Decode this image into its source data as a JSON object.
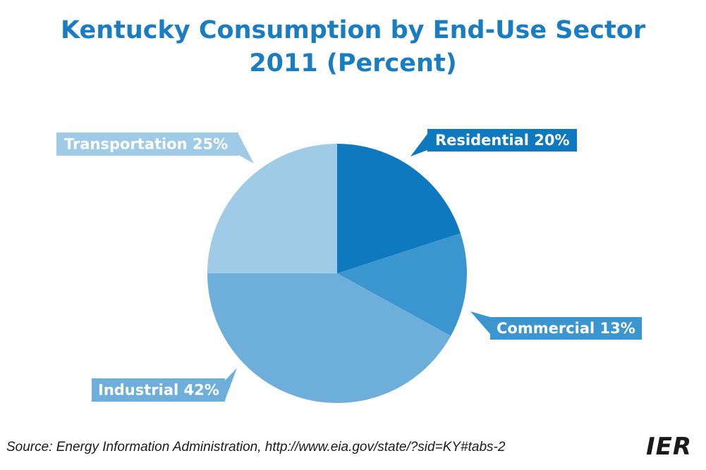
{
  "chart_data": {
    "type": "pie",
    "title": "Kentucky Consumption by End-Use Sector",
    "subtitle": "2011 (Percent)",
    "slices": [
      {
        "name": "Residential",
        "value": 20,
        "label": "Residential 20%",
        "color": "#0f79c0"
      },
      {
        "name": "Commercial",
        "value": 13,
        "label": "Commercial 13%",
        "color": "#3b96d0"
      },
      {
        "name": "Industrial",
        "value": 42,
        "label": "Industrial 42%",
        "color": "#6eaedb"
      },
      {
        "name": "Transportation",
        "value": 25,
        "label": "Transportation 25%",
        "color": "#9fcbe6"
      }
    ]
  },
  "source": "Source: Energy Information Administration, http://www.eia.gov/state/?sid=KY#tabs-2",
  "logo_text": "IER"
}
